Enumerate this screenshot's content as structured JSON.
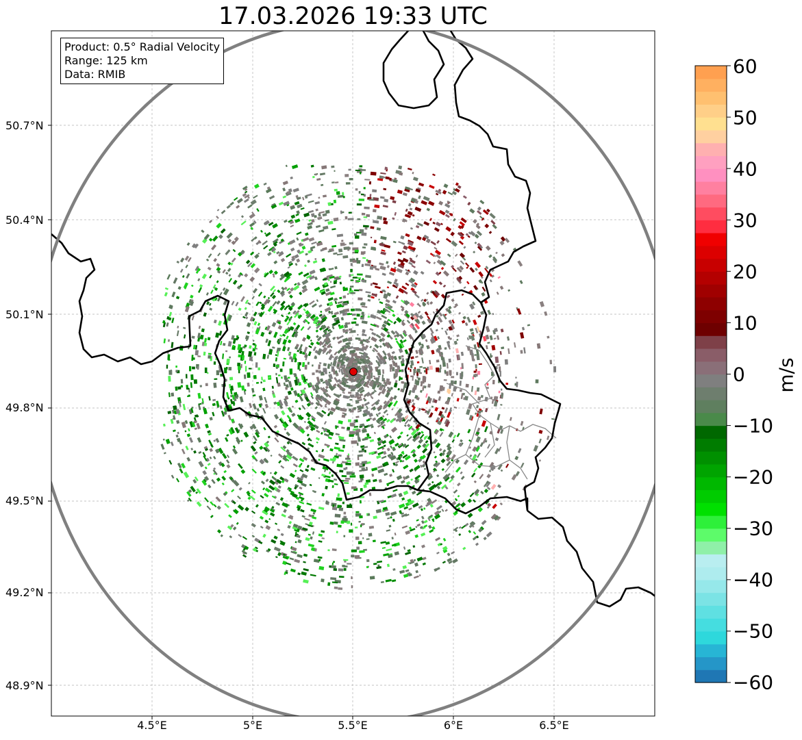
{
  "title": "17.03.2026 19:33 UTC",
  "info_box": {
    "product": "Product: 0.5° Radial Velocity",
    "range": "Range: 125 km",
    "data": "Data: RMIB"
  },
  "latitude_labels": [
    "50.7°N",
    "50.4°N",
    "50.1°N",
    "49.8°N",
    "49.5°N",
    "49.2°N",
    "48.9°N"
  ],
  "longitude_labels": [
    "4.5°E",
    "5°E",
    "5.5°E",
    "6°E",
    "6.5°E"
  ],
  "colorbar": {
    "label": "m/s",
    "ticks": [
      "60",
      "50",
      "40",
      "30",
      "20",
      "10",
      "0",
      "−10",
      "−20",
      "−30",
      "−40",
      "−50",
      "−60"
    ],
    "range": [
      -60,
      60
    ],
    "colors": [
      "#1f77b4",
      "#2596c8",
      "#27b5d5",
      "#2ed8dc",
      "#45dde0",
      "#5fe0e2",
      "#7be3e5",
      "#96e8ea",
      "#aeecee",
      "#b9eef0",
      "#8ff0a8",
      "#5dfb6a",
      "#2ef03a",
      "#00e000",
      "#00cc00",
      "#00b800",
      "#00a400",
      "#009000",
      "#007c00",
      "#006800",
      "#4a8a4a",
      "#5f7f5f",
      "#6e7e6e",
      "#7f7f7f",
      "#8a6f78",
      "#8a5d68",
      "#7e4048",
      "#6e0000",
      "#7e0000",
      "#8e0000",
      "#a00000",
      "#b40000",
      "#c80000",
      "#dc0000",
      "#f00000",
      "#ff2d40",
      "#ff4c60",
      "#ff6a80",
      "#ff80a0",
      "#ff90c0",
      "#ffa0c0",
      "#ffb0b0",
      "#ffd0a0",
      "#ffe090",
      "#ffcf88",
      "#ffc070",
      "#ffb060",
      "#ffa050"
    ]
  },
  "radar_site": {
    "lon": 5.5,
    "lat": 49.915
  },
  "colors": {
    "range_ring": "#808080",
    "border": "#000000",
    "sub_border": "#888888",
    "grid": "#b0b0b0",
    "site_marker": "#e00000"
  }
}
